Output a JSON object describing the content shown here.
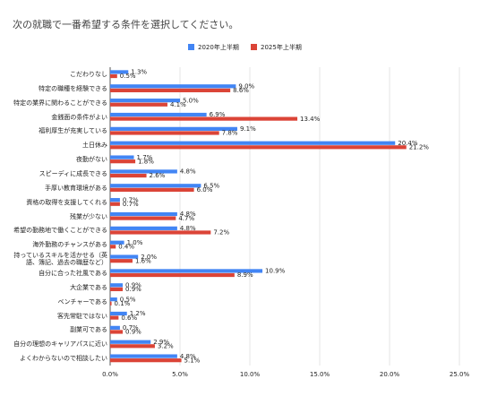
{
  "chart_data": {
    "type": "bar",
    "orientation": "horizontal",
    "title": "次の就職で一番希望する条件を選択してください。",
    "legend": "top",
    "categories": [
      "こだわりなし",
      "特定の職種を経験できる",
      "特定の業界に関わることができる",
      "金銭面の条件がよい",
      "福利厚生が充実している",
      "土日休み",
      "夜勤がない",
      "スピーディに成長できる",
      "手厚い教育環境がある",
      "資格の取得を支援してくれる",
      "残業が少ない",
      "希望の勤務地で働くことができる",
      "海外勤務のチャンスがある",
      "持っているスキルを活かせる（英語、簿記、過去の職歴など）",
      "自分に合った社風である",
      "大企業である",
      "ベンチャーである",
      "客先常駐ではない",
      "副業可である",
      "自分の理想のキャリアパスに近い",
      "よくわからないので相談したい"
    ],
    "series": [
      {
        "name": "2020年上半期",
        "color": "#4285f4",
        "values": [
          1.3,
          9.0,
          5.0,
          6.9,
          9.1,
          20.4,
          1.7,
          4.8,
          6.5,
          0.7,
          4.8,
          4.8,
          1.0,
          2.0,
          10.9,
          0.9,
          0.5,
          1.2,
          0.7,
          2.9,
          4.8
        ],
        "value_labels": [
          "1.3%",
          "9.0%",
          "5.0%",
          "6.9%",
          "9.1%",
          "20.4%",
          "1.7%",
          "4.8%",
          "6.5%",
          "0.7%",
          "4.8%",
          "4.8%",
          "1.0%",
          "2.0%",
          "10.9%",
          "0.9%",
          "0.5%",
          "1.2%",
          "0.7%",
          "2.9%",
          "4.8%"
        ]
      },
      {
        "name": "2025年上半期",
        "color": "#db4437",
        "values": [
          0.5,
          8.6,
          4.1,
          13.4,
          7.8,
          21.2,
          1.8,
          2.6,
          6.0,
          0.7,
          4.7,
          7.2,
          0.4,
          1.6,
          8.9,
          0.9,
          0.1,
          0.6,
          0.9,
          3.2,
          5.1
        ],
        "value_labels": [
          "0.5%",
          "8.6%",
          "4.1%",
          "13.4%",
          "7.8%",
          "21.2%",
          "1.8%",
          "2.6%",
          "6.0%",
          "0.7%",
          "4.7%",
          "7.2%",
          "0.4%",
          "1.6%",
          "8.9%",
          "0.9%",
          "0.1%",
          "0.6%",
          "0.9%",
          "3.2%",
          "5.1%"
        ]
      }
    ],
    "xlim": [
      0,
      25
    ],
    "xticks": [
      {
        "value": 0,
        "label": "0.0%"
      },
      {
        "value": 5,
        "label": "5.0%"
      },
      {
        "value": 10,
        "label": "10.0%"
      },
      {
        "value": 15,
        "label": "15.0%"
      },
      {
        "value": 20,
        "label": "20.0%"
      },
      {
        "value": 25,
        "label": "25.0%"
      }
    ],
    "grid": true
  }
}
